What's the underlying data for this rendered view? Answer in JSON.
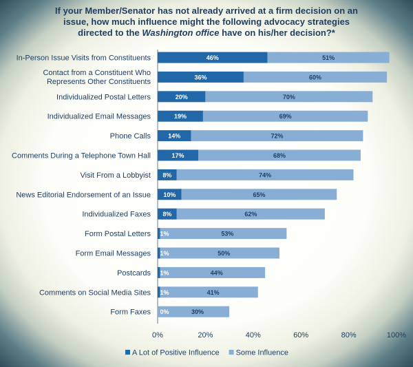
{
  "chart_data": {
    "type": "bar",
    "orientation": "horizontal",
    "stacked": true,
    "title": {
      "line1": "If your Member/Senator has not already arrived at a firm decision on an",
      "line2": "issue, how much influence might the following advocacy strategies",
      "line3_before": "directed to the ",
      "line3_italic": "Washington office",
      "line3_after": " have on his/her decision?*"
    },
    "categories": [
      "In-Person Issue Visits from Constituents",
      "Contact from a Constituent Who Represents Other Constituents",
      "Individualized Postal Letters",
      "Individualized Email Messages",
      "Phone Calls",
      "Comments During a Telephone Town Hall",
      "Visit From a Lobbyist",
      "News Editorial Endorsement of an Issue",
      "Individualized Faxes",
      "Form Postal Letters",
      "Form Email Messages",
      "Postcards",
      "Comments on Social Media Sites",
      "Form Faxes"
    ],
    "series": [
      {
        "name": "A Lot of Positive Influence",
        "color": "#2267a8",
        "values": [
          46,
          36,
          20,
          19,
          14,
          17,
          8,
          10,
          8,
          1,
          1,
          1,
          1,
          0
        ]
      },
      {
        "name": "Some Influence",
        "color": "#89aed6",
        "values": [
          51,
          60,
          70,
          69,
          72,
          68,
          74,
          65,
          62,
          53,
          50,
          44,
          41,
          30
        ]
      }
    ],
    "xlim": [
      0,
      100
    ],
    "x_ticks": [
      "0%",
      "20%",
      "40%",
      "60%",
      "80%",
      "100%"
    ],
    "value_suffix": "%",
    "legend_position": "bottom",
    "grid": false
  }
}
